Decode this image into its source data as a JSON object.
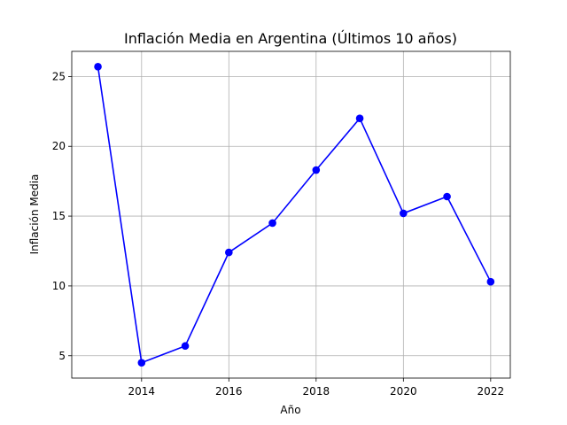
{
  "chart_data": {
    "type": "line",
    "title": "Inflación Media en Argentina (Últimos 10 años)",
    "xlabel": "Año",
    "ylabel": "Inflación Media",
    "x": [
      2013,
      2014,
      2015,
      2016,
      2017,
      2018,
      2019,
      2020,
      2021,
      2022
    ],
    "series": [
      {
        "values": [
          25.7,
          4.5,
          5.7,
          12.4,
          14.5,
          18.3,
          22.0,
          15.2,
          16.4,
          10.3
        ],
        "color": "#0000ff"
      }
    ],
    "xlim": [
      2012.4,
      2022.45
    ],
    "ylim": [
      3.4,
      26.8
    ],
    "xticks": [
      2014,
      2016,
      2018,
      2020,
      2022
    ],
    "yticks": [
      5,
      10,
      15,
      20,
      25
    ],
    "grid": true,
    "marker": "circle"
  }
}
